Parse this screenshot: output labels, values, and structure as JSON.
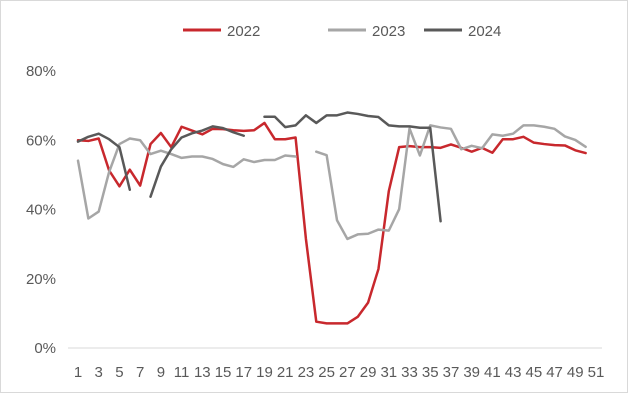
{
  "chart_data": {
    "type": "line",
    "title": "",
    "xlabel": "",
    "ylabel": "",
    "x": [
      1,
      2,
      3,
      4,
      5,
      6,
      7,
      8,
      9,
      10,
      11,
      12,
      13,
      14,
      15,
      16,
      17,
      18,
      19,
      20,
      21,
      22,
      23,
      24,
      25,
      26,
      27,
      28,
      29,
      30,
      31,
      32,
      33,
      34,
      35,
      36,
      37,
      38,
      39,
      40,
      41,
      42,
      43,
      44,
      45,
      46,
      47,
      48,
      49,
      50,
      51
    ],
    "x_tick_labels": [
      "1",
      "3",
      "5",
      "7",
      "9",
      "11",
      "13",
      "15",
      "17",
      "19",
      "21",
      "23",
      "25",
      "27",
      "29",
      "31",
      "33",
      "35",
      "37",
      "39",
      "41",
      "43",
      "45",
      "47",
      "49",
      "51"
    ],
    "ylim": [
      0,
      0.8
    ],
    "y_ticks": [
      0,
      0.2,
      0.4,
      0.6,
      0.8
    ],
    "y_tick_labels": [
      "0%",
      "20%",
      "40%",
      "60%",
      "80%"
    ],
    "grid": false,
    "legend_position": "top",
    "series": [
      {
        "name": "2022",
        "color": "#c8282d",
        "values": [
          0.6,
          0.598,
          0.605,
          0.513,
          0.467,
          0.515,
          0.469,
          0.589,
          0.621,
          0.58,
          0.639,
          0.628,
          0.617,
          0.633,
          0.632,
          0.629,
          0.627,
          0.629,
          0.65,
          0.603,
          0.603,
          0.608,
          0.315,
          0.076,
          0.071,
          0.071,
          0.071,
          0.09,
          0.131,
          0.228,
          0.453,
          0.58,
          0.583,
          0.58,
          0.58,
          0.578,
          0.588,
          0.578,
          0.567,
          0.578,
          0.564,
          0.603,
          0.603,
          0.61,
          0.593,
          0.589,
          0.586,
          0.585,
          0.571,
          0.563,
          null
        ]
      },
      {
        "name": "2023",
        "color": "#a6a6a6",
        "values": [
          0.541,
          0.374,
          0.394,
          0.508,
          0.589,
          0.605,
          0.6,
          0.56,
          0.57,
          0.56,
          0.549,
          0.553,
          0.553,
          0.546,
          0.531,
          0.523,
          0.545,
          0.537,
          0.543,
          0.543,
          0.556,
          0.553,
          null,
          0.567,
          0.557,
          0.369,
          0.315,
          0.328,
          0.33,
          0.342,
          0.339,
          0.401,
          0.634,
          0.556,
          0.643,
          0.637,
          0.633,
          0.574,
          0.584,
          0.577,
          0.617,
          0.613,
          0.619,
          0.643,
          0.643,
          0.639,
          0.633,
          0.611,
          0.601,
          0.581,
          null
        ]
      },
      {
        "name": "2024",
        "color": "#595959",
        "values": [
          0.596,
          0.61,
          0.619,
          0.603,
          0.58,
          0.457,
          null,
          0.437,
          0.524,
          0.574,
          0.608,
          0.62,
          0.628,
          0.64,
          0.635,
          0.623,
          0.613,
          null,
          0.668,
          0.668,
          0.638,
          0.643,
          0.672,
          0.65,
          0.672,
          0.672,
          0.68,
          0.676,
          0.67,
          0.667,
          0.643,
          0.64,
          0.64,
          0.636,
          0.636,
          0.366,
          null,
          null,
          null,
          null,
          null,
          null,
          null,
          null,
          null,
          null,
          null,
          null,
          null,
          null,
          null
        ]
      }
    ]
  }
}
